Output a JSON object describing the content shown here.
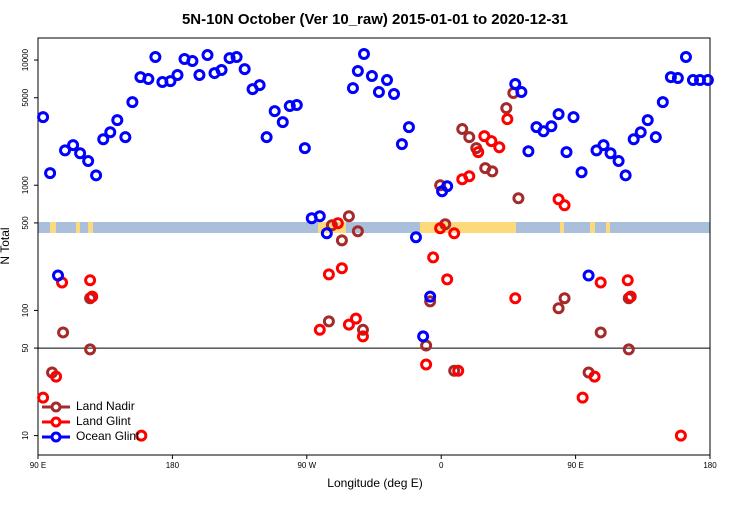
{
  "chart_data": {
    "type": "scatter",
    "title": "5N-10N October (Ver 10_raw)   2015-01-01 to 2020-12-31",
    "xlabel": "Longitude (deg E)",
    "ylabel": "N Total",
    "xlim": [
      90,
      540
    ],
    "xticks": [
      {
        "value": 90,
        "label": "90 E"
      },
      {
        "value": 180,
        "label": "180"
      },
      {
        "value": 270,
        "label": "90 W"
      },
      {
        "value": 360,
        "label": "0"
      },
      {
        "value": 450,
        "label": "90 E"
      },
      {
        "value": 540,
        "label": "180"
      }
    ],
    "ylim": [
      7,
      15000
    ],
    "yscale": "log",
    "yticks": [
      10,
      50,
      100,
      500,
      1000,
      5000,
      10000
    ],
    "hline": 50,
    "legend": "lower left",
    "series": [
      {
        "name": "Land Nadir",
        "color": "#a52a2a",
        "x": [
          99.4,
          106.8,
          124.9,
          124.9,
          284.8,
          286.8,
          293.5,
          298.2,
          304.2,
          307.6,
          349.9,
          352.6,
          359.3,
          362.7,
          368.7,
          374.1,
          378.8,
          383.5,
          389.5,
          394.2,
          403.6,
          408.3,
          411.7,
          438.6,
          442.6,
          458.7,
          466.8,
          485.6,
          485.6
        ],
        "values": [
          31.9,
          66.7,
          48.8,
          125,
          81.7,
          479,
          363,
          565,
          429,
          70,
          52.5,
          118,
          1000,
          488,
          33,
          2810,
          2420,
          1980,
          1370,
          1290,
          4130,
          5450,
          787,
          104,
          125,
          31.9,
          66.7,
          48.8,
          125
        ]
      },
      {
        "name": "Land Glint",
        "color": "#ff0000",
        "x": [
          93.4,
          102.1,
          106.1,
          124.9,
          126.3,
          159.2,
          284.8,
          293.5,
          290.8,
          302.9,
          307.6,
          278.7,
          298.2,
          349.9,
          354.6,
          359.3,
          364.0,
          368.7,
          371.4,
          374.1,
          378.8,
          388.9,
          393.6,
          384.8,
          398.9,
          404.3,
          409.6,
          438.6,
          442.6,
          454.7,
          462.7,
          466.8,
          484.9,
          486.9,
          520.5
        ],
        "values": [
          20.1,
          29.6,
          167,
          174,
          129,
          10,
          194,
          217,
          497,
          86,
          62,
          70,
          77,
          37,
          265,
          453,
          177,
          413,
          33,
          1117,
          1180,
          2470,
          2250,
          1840,
          2010,
          3370,
          125,
          773,
          692,
          20.1,
          29.6,
          167,
          174,
          129,
          10
        ]
      },
      {
        "name": "Ocean Glint",
        "color": "#0000ff",
        "x": [
          93.4,
          98.1,
          103.4,
          108.1,
          113.5,
          118.2,
          123.6,
          128.9,
          133.7,
          138.4,
          143.1,
          148.5,
          153.2,
          158.6,
          163.9,
          168.6,
          173.3,
          178.7,
          183.4,
          188.1,
          193.4,
          198.1,
          203.5,
          208.2,
          212.9,
          218.3,
          223.0,
          228.4,
          233.7,
          238.4,
          243.1,
          248.5,
          253.9,
          258.6,
          263.3,
          268.7,
          273.3,
          278.7,
          283.4,
          300.9,
          304.2,
          308.3,
          313.6,
          318.3,
          323.7,
          328.4,
          333.7,
          338.4,
          343.1,
          347.9,
          352.6,
          360.6,
          364.0,
          409.6,
          413.7,
          418.4,
          423.8,
          428.5,
          433.8,
          438.6,
          443.9,
          448.6,
          454.0,
          458.7,
          464.0,
          468.7,
          473.4,
          478.8,
          483.5,
          488.9,
          493.6,
          498.3,
          503.7,
          508.4,
          513.8,
          518.5,
          523.9,
          528.6,
          533.3,
          538.6
        ],
        "values": [
          3500,
          1250,
          190,
          1900,
          2090,
          1800,
          1560,
          1200,
          2330,
          2650,
          3310,
          2420,
          4610,
          7310,
          7050,
          10570,
          6670,
          6790,
          7590,
          10190,
          9820,
          7590,
          10960,
          7870,
          8320,
          10370,
          10570,
          8470,
          5860,
          6310,
          2420,
          3910,
          3190,
          4290,
          4370,
          1980,
          545,
          565,
          413,
          5970,
          8170,
          11170,
          7450,
          5550,
          6920,
          5350,
          2130,
          2910,
          384,
          62,
          129,
          895,
          982,
          6430,
          5550,
          1870,
          2910,
          2700,
          2960,
          3700,
          1840,
          3500,
          1270,
          190,
          1900,
          2090,
          1800,
          1560,
          1200,
          2330,
          2650,
          3310,
          2420,
          4610,
          7310,
          7180,
          10570,
          6920,
          6920,
          6920
        ]
      }
    ]
  }
}
